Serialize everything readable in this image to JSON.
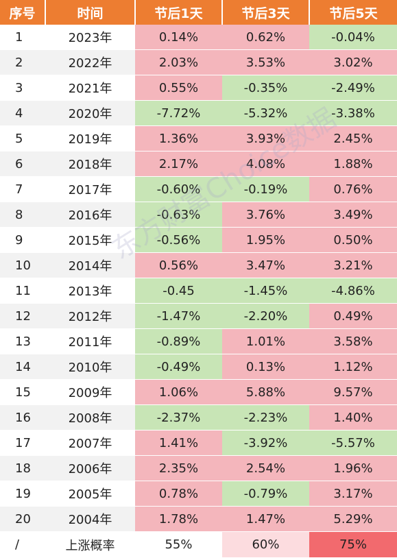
{
  "table": {
    "headers": [
      "序号",
      "时间",
      "节后1天",
      "节后3天",
      "节后5天"
    ],
    "rows": [
      {
        "seq": "1",
        "year": "2023年",
        "d1": "0.14%",
        "d3": "0.62%",
        "d5": "-0.04%"
      },
      {
        "seq": "2",
        "year": "2022年",
        "d1": "2.03%",
        "d3": "3.53%",
        "d5": "3.02%"
      },
      {
        "seq": "3",
        "year": "2021年",
        "d1": "0.55%",
        "d3": "-0.35%",
        "d5": "-2.49%"
      },
      {
        "seq": "4",
        "year": "2020年",
        "d1": "-7.72%",
        "d3": "-5.32%",
        "d5": "-3.38%"
      },
      {
        "seq": "5",
        "year": "2019年",
        "d1": "1.36%",
        "d3": "3.93%",
        "d5": "2.45%"
      },
      {
        "seq": "6",
        "year": "2018年",
        "d1": "2.17%",
        "d3": "4.08%",
        "d5": "1.88%"
      },
      {
        "seq": "7",
        "year": "2017年",
        "d1": "-0.60%",
        "d3": "-0.19%",
        "d5": "0.76%"
      },
      {
        "seq": "8",
        "year": "2016年",
        "d1": "-0.63%",
        "d3": "3.76%",
        "d5": "3.49%"
      },
      {
        "seq": "9",
        "year": "2015年",
        "d1": "-0.56%",
        "d3": "1.95%",
        "d5": "0.50%"
      },
      {
        "seq": "10",
        "year": "2014年",
        "d1": "0.56%",
        "d3": "3.47%",
        "d5": "3.21%"
      },
      {
        "seq": "11",
        "year": "2013年",
        "d1": "-0.45",
        "d3": "-1.45%",
        "d5": "-4.86%"
      },
      {
        "seq": "12",
        "year": "2012年",
        "d1": "-1.47%",
        "d3": "-2.20%",
        "d5": "0.49%"
      },
      {
        "seq": "13",
        "year": "2011年",
        "d1": "-0.89%",
        "d3": "1.01%",
        "d5": "3.58%"
      },
      {
        "seq": "14",
        "year": "2010年",
        "d1": "-0.49%",
        "d3": "0.13%",
        "d5": "1.12%"
      },
      {
        "seq": "15",
        "year": "2009年",
        "d1": "1.06%",
        "d3": "5.88%",
        "d5": "9.57%"
      },
      {
        "seq": "16",
        "year": "2008年",
        "d1": "-2.37%",
        "d3": "-2.23%",
        "d5": "1.40%"
      },
      {
        "seq": "17",
        "year": "2007年",
        "d1": "1.41%",
        "d3": "-3.92%",
        "d5": "-5.57%"
      },
      {
        "seq": "18",
        "year": "2006年",
        "d1": "2.35%",
        "d3": "2.54%",
        "d5": "1.96%"
      },
      {
        "seq": "19",
        "year": "2005年",
        "d1": "0.78%",
        "d3": "-0.79%",
        "d5": "3.17%"
      },
      {
        "seq": "20",
        "year": "2004年",
        "d1": "1.78%",
        "d3": "1.47%",
        "d5": "5.29%"
      }
    ],
    "summary": {
      "seq": "/",
      "label": "上涨概率",
      "d1": "55%",
      "d3": "60%",
      "d5": "75%"
    }
  },
  "watermark": "东方财富Choice数据",
  "colors": {
    "header_bg": "#ed7d31",
    "up_bg": "#f4b6bc",
    "down_bg": "#c8e5b6",
    "summary_d3_bg": "#fcdcdf",
    "summary_d5_bg": "#f26a6e"
  }
}
